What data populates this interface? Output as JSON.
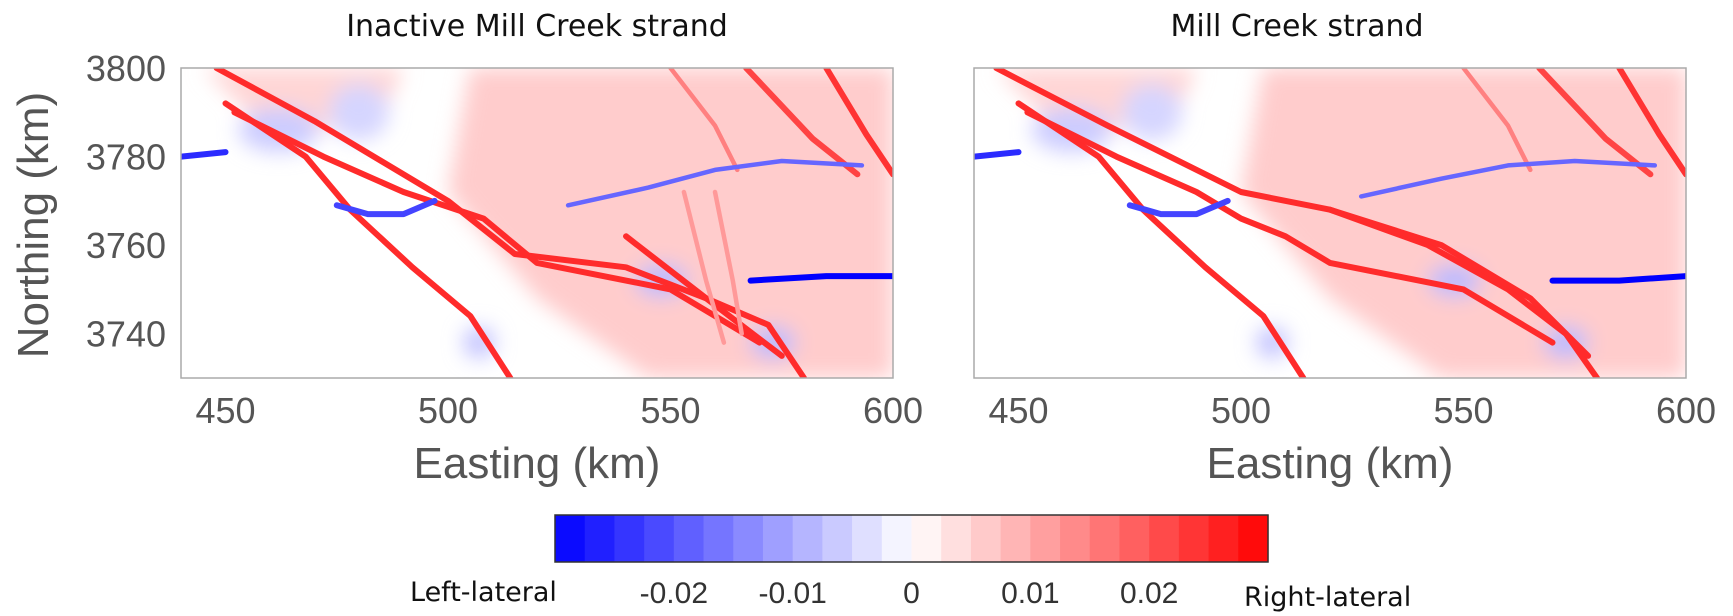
{
  "chart_data": [
    {
      "type": "heatmap",
      "title": "Inactive Mill Creek strand",
      "xlabel": "Easting (km)",
      "ylabel": "Northing (km)",
      "xlim": [
        440,
        600
      ],
      "ylim": [
        3730,
        3800
      ],
      "xticks": [
        "450",
        "500",
        "550",
        "600"
      ],
      "yticks": [
        "3800",
        "3780",
        "3760",
        "3740"
      ],
      "faults": [
        {
          "slip": 0.025,
          "points": [
            [
              448,
              3800
            ],
            [
              470,
              3788
            ],
            [
              500,
              3770
            ],
            [
              515,
              3758
            ],
            [
              540,
              3755
            ],
            [
              558,
              3748
            ],
            [
              572,
              3742
            ],
            [
              580,
              3730
            ]
          ]
        },
        {
          "slip": 0.025,
          "points": [
            [
              450,
              3792
            ],
            [
              468,
              3780
            ],
            [
              478,
              3768
            ],
            [
              492,
              3755
            ],
            [
              505,
              3744
            ],
            [
              514,
              3730
            ]
          ]
        },
        {
          "slip": 0.025,
          "points": [
            [
              452,
              3790
            ],
            [
              472,
              3780
            ],
            [
              490,
              3772
            ],
            [
              508,
              3766
            ],
            [
              520,
              3756
            ],
            [
              550,
              3750
            ],
            [
              570,
              3738
            ]
          ]
        },
        {
          "slip": 0.025,
          "points": [
            [
              540,
              3762
            ],
            [
              558,
              3748
            ],
            [
              575,
              3735
            ]
          ]
        },
        {
          "slip": 0.024,
          "points": [
            [
              585,
              3800
            ],
            [
              594,
              3785
            ],
            [
              600,
              3776
            ]
          ]
        },
        {
          "slip": 0.022,
          "points": [
            [
              567,
              3800
            ],
            [
              582,
              3784
            ],
            [
              592,
              3776
            ]
          ]
        },
        {
          "slip": 0.015,
          "points": [
            [
              550,
              3800
            ],
            [
              560,
              3787
            ],
            [
              565,
              3777
            ]
          ]
        },
        {
          "slip": 0.012,
          "points": [
            [
              553,
              3772
            ],
            [
              558,
              3752
            ],
            [
              562,
              3738
            ]
          ]
        },
        {
          "slip": 0.012,
          "points": [
            [
              560,
              3772
            ],
            [
              564,
              3752
            ],
            [
              566,
              3740
            ]
          ]
        },
        {
          "slip": -0.025,
          "points": [
            [
              440,
              3780
            ],
            [
              450,
              3781
            ]
          ]
        },
        {
          "slip": -0.022,
          "points": [
            [
              475,
              3769
            ],
            [
              482,
              3767
            ],
            [
              490,
              3767
            ],
            [
              497,
              3770
            ]
          ]
        },
        {
          "slip": -0.018,
          "points": [
            [
              527,
              3769
            ],
            [
              545,
              3773
            ],
            [
              560,
              3777
            ],
            [
              575,
              3779
            ],
            [
              593,
              3778
            ]
          ]
        },
        {
          "slip": -0.03,
          "points": [
            [
              568,
              3752
            ],
            [
              585,
              3753
            ],
            [
              600,
              3753
            ]
          ]
        }
      ]
    },
    {
      "type": "heatmap",
      "title": "Mill Creek strand",
      "xlabel": "Easting (km)",
      "ylabel": "",
      "xlim": [
        440,
        600
      ],
      "ylim": [
        3730,
        3800
      ],
      "xticks": [
        "450",
        "500",
        "550",
        "600"
      ],
      "faults": [
        {
          "slip": 0.025,
          "points": [
            [
              445,
              3800
            ],
            [
              470,
              3787
            ],
            [
              500,
              3772
            ],
            [
              520,
              3768
            ],
            [
              542,
              3760
            ],
            [
              560,
              3750
            ],
            [
              573,
              3740
            ],
            [
              580,
              3730
            ]
          ]
        },
        {
          "slip": 0.025,
          "points": [
            [
              450,
              3792
            ],
            [
              468,
              3780
            ],
            [
              478,
              3768
            ],
            [
              492,
              3755
            ],
            [
              505,
              3744
            ],
            [
              514,
              3730
            ]
          ]
        },
        {
          "slip": 0.025,
          "points": [
            [
              452,
              3790
            ],
            [
              472,
              3780
            ],
            [
              490,
              3772
            ],
            [
              500,
              3766
            ],
            [
              510,
              3762
            ],
            [
              520,
              3756
            ],
            [
              550,
              3750
            ],
            [
              570,
              3738
            ]
          ]
        },
        {
          "slip": 0.025,
          "points": [
            [
              520,
              3768
            ],
            [
              545,
              3760
            ],
            [
              565,
              3748
            ],
            [
              578,
              3735
            ]
          ]
        },
        {
          "slip": 0.024,
          "points": [
            [
              585,
              3800
            ],
            [
              594,
              3785
            ],
            [
              600,
              3776
            ]
          ]
        },
        {
          "slip": 0.022,
          "points": [
            [
              567,
              3800
            ],
            [
              582,
              3784
            ],
            [
              592,
              3776
            ]
          ]
        },
        {
          "slip": 0.015,
          "points": [
            [
              550,
              3800
            ],
            [
              560,
              3787
            ],
            [
              565,
              3777
            ]
          ]
        },
        {
          "slip": -0.025,
          "points": [
            [
              440,
              3780
            ],
            [
              450,
              3781
            ]
          ]
        },
        {
          "slip": -0.022,
          "points": [
            [
              475,
              3769
            ],
            [
              482,
              3767
            ],
            [
              490,
              3767
            ],
            [
              497,
              3770
            ]
          ]
        },
        {
          "slip": -0.018,
          "points": [
            [
              527,
              3771
            ],
            [
              545,
              3775
            ],
            [
              560,
              3778
            ],
            [
              575,
              3779
            ],
            [
              593,
              3778
            ]
          ]
        },
        {
          "slip": -0.03,
          "points": [
            [
              570,
              3752
            ],
            [
              585,
              3752
            ],
            [
              600,
              3753
            ]
          ]
        }
      ]
    }
  ],
  "colorbar": {
    "vmin": -0.03,
    "vmax": 0.03,
    "steps": 24,
    "colors": {
      "negative": "#0000ff",
      "zero": "#ffffff",
      "positive": "#ff0000",
      "background": "#fbe4e4"
    },
    "ticks": [
      {
        "value": -0.02,
        "label": "-0.02"
      },
      {
        "value": -0.01,
        "label": "-0.01"
      },
      {
        "value": 0,
        "label": "0"
      },
      {
        "value": 0.01,
        "label": "0.01"
      },
      {
        "value": 0.02,
        "label": "0.02"
      }
    ],
    "left_label": "Left-lateral",
    "right_label": "Right-lateral"
  }
}
